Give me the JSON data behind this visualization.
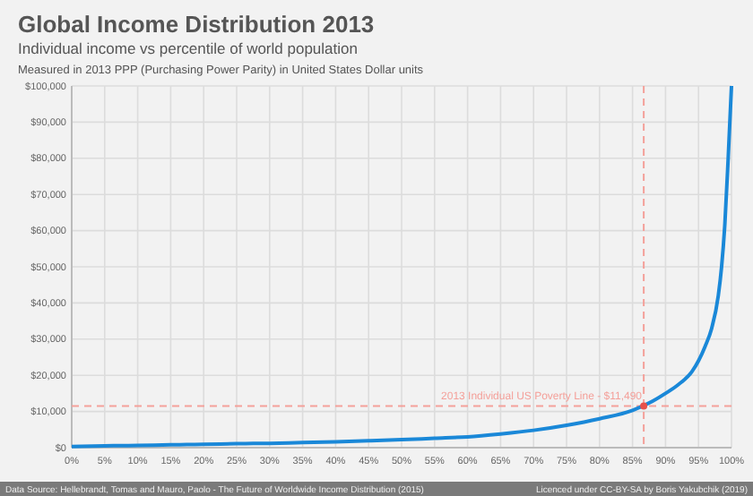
{
  "chart_data": {
    "type": "line",
    "title": "Global Income Distribution 2013",
    "subtitle": "Individual income vs percentile of world population",
    "annotations": [
      "Measured in 2013 PPP (Purchasing Power Parity) in United States Dollar units",
      "Data Source: Hellebrandt, Tomas and Mauro, Paolo - The Future of Worldwide Income Distribution (2015)",
      "Licenced under CC-BY-SA by Boris Yakubchik (2019)"
    ],
    "series": [
      {
        "color": "#1a88d8",
        "marker": "none",
        "x": [
          0,
          5,
          10,
          15,
          20,
          25,
          30,
          35,
          40,
          45,
          50,
          55,
          60,
          65,
          70,
          75,
          80,
          85,
          88,
          90,
          92,
          94,
          95,
          96,
          97,
          98,
          98.5,
          99,
          99.5,
          100
        ],
        "values": [
          300,
          500,
          600,
          800,
          900,
          1100,
          1200,
          1400,
          1600,
          1900,
          2200,
          2600,
          3000,
          3800,
          4800,
          6200,
          8000,
          10300,
          12800,
          15000,
          17500,
          21000,
          24000,
          28000,
          33000,
          42000,
          50000,
          62000,
          80000,
          100000
        ]
      },
      {
        "type": "scatter",
        "color": "#e8504a",
        "marker": "circle",
        "x": [
          86.7
        ],
        "values": [
          11490
        ]
      }
    ],
    "xlim": [
      0,
      100
    ],
    "ylim": [
      0,
      100000
    ],
    "xticks": [
      {
        "value": 0,
        "label": "0%"
      },
      {
        "value": 5,
        "label": "5%"
      },
      {
        "value": 10,
        "label": "10%"
      },
      {
        "value": 15,
        "label": "15%"
      },
      {
        "value": 20,
        "label": "20%"
      },
      {
        "value": 25,
        "label": "25%"
      },
      {
        "value": 30,
        "label": "30%"
      },
      {
        "value": 35,
        "label": "35%"
      },
      {
        "value": 40,
        "label": "40%"
      },
      {
        "value": 45,
        "label": "45%"
      },
      {
        "value": 50,
        "label": "50%"
      },
      {
        "value": 55,
        "label": "55%"
      },
      {
        "value": 60,
        "label": "60%"
      },
      {
        "value": 65,
        "label": "65%"
      },
      {
        "value": 70,
        "label": "70%"
      },
      {
        "value": 75,
        "label": "75%"
      },
      {
        "value": 80,
        "label": "80%"
      },
      {
        "value": 85,
        "label": "85%"
      },
      {
        "value": 90,
        "label": "90%"
      },
      {
        "value": 95,
        "label": "95%"
      },
      {
        "value": 100,
        "label": "100%"
      }
    ],
    "yticks": [
      {
        "value": 0,
        "label": "$0"
      },
      {
        "value": 10000,
        "label": "$10,000"
      },
      {
        "value": 20000,
        "label": "$20,000"
      },
      {
        "value": 30000,
        "label": "$30,000"
      },
      {
        "value": 40000,
        "label": "$40,000"
      },
      {
        "value": 50000,
        "label": "$50,000"
      },
      {
        "value": 60000,
        "label": "$60,000"
      },
      {
        "value": 70000,
        "label": "$70,000"
      },
      {
        "value": 80000,
        "label": "$80,000"
      },
      {
        "value": 90000,
        "label": "$90,000"
      },
      {
        "value": 100000,
        "label": "$100,000"
      }
    ],
    "ref_lines": [
      {
        "axis": "y",
        "value": 11490,
        "label": "2013 Individual US Poverty Line - $11,490",
        "color": "#f4a09a",
        "line_style": "dashed"
      },
      {
        "axis": "x",
        "value": 86.7,
        "color": "#f4a09a",
        "line_style": "dashed"
      }
    ],
    "grid": true,
    "line_style": "solid"
  }
}
